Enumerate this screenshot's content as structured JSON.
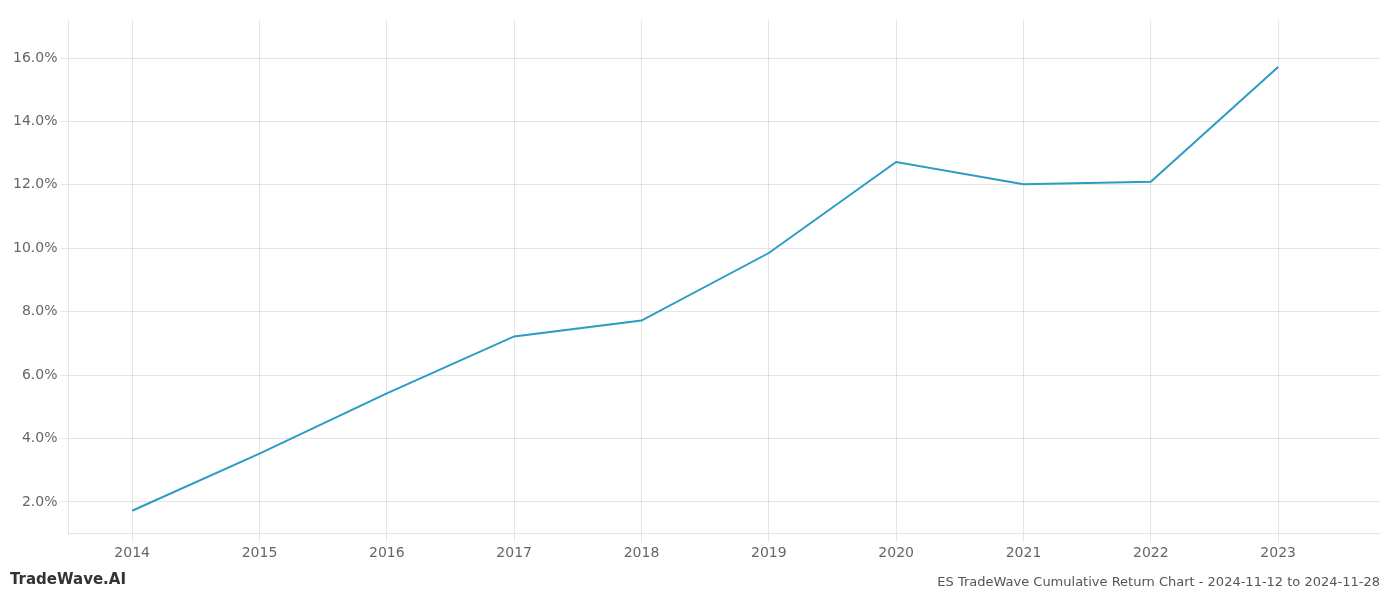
{
  "chart_data": {
    "type": "line",
    "title": "ES TradeWave Cumulative Return Chart - 2024-11-12 to 2024-11-28",
    "annotations": [
      "TradeWave.AI"
    ],
    "x": [
      2014,
      2015,
      2016,
      2017,
      2018,
      2019,
      2020,
      2021,
      2022,
      2023
    ],
    "values": [
      1.72,
      3.52,
      5.42,
      7.22,
      7.72,
      9.85,
      12.72,
      12.02,
      12.1,
      15.72
    ],
    "color": "#2b9cc4",
    "xlim": [
      2013.5,
      2023.8
    ],
    "ylim": [
      1.0,
      17.2
    ],
    "xticks": [
      2014,
      2015,
      2016,
      2017,
      2018,
      2019,
      2020,
      2021,
      2022,
      2023
    ],
    "yticks": [
      {
        "value": 2.0,
        "label": "2.0%"
      },
      {
        "value": 4.0,
        "label": "4.0%"
      },
      {
        "value": 6.0,
        "label": "6.0%"
      },
      {
        "value": 8.0,
        "label": "8.0%"
      },
      {
        "value": 10.0,
        "label": "10.0%"
      },
      {
        "value": 12.0,
        "label": "12.0%"
      },
      {
        "value": 14.0,
        "label": "14.0%"
      },
      {
        "value": 16.0,
        "label": "16.0%"
      }
    ],
    "grid": true
  }
}
